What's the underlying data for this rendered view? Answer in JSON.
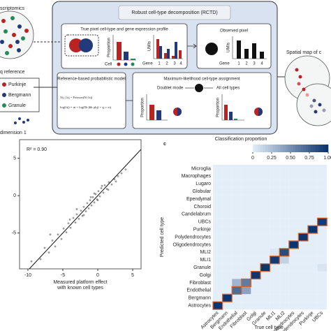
{
  "figure": {
    "left": {
      "title": "scriptomics",
      "reference": "q reference",
      "legend": [
        "Purkinje",
        "Bergmann",
        "Granule"
      ],
      "axis": "dimension 1"
    },
    "rctd": {
      "title": "Robust cell-type decomposition (RCTD)",
      "true_pixel": {
        "title": "True pixel cell-type and gene expression profile",
        "proportion": "Proportion",
        "cell": "Cell",
        "umis": "UMIs",
        "gene": "Gene",
        "genes": [
          "1",
          "2",
          "3",
          "4"
        ]
      },
      "observed": {
        "title": "Observed pixel",
        "umis": "UMIs",
        "gene": "Gene",
        "genes": [
          "1",
          "2",
          "3",
          "4"
        ]
      },
      "model": {
        "title": "Reference-based probabilistic model",
        "equations": [
          "Yij | λij ~ Poisson(Ni λij)",
          "log(λij) = αi + log(Σk βik μkj) + γj + εij"
        ]
      },
      "assignment": {
        "title": "Maximum-likelihood cell-type assignment",
        "doublet": "Doublet mode",
        "all": "All cell types",
        "proportion": "Proportion"
      }
    },
    "spatial": "Spatial map of c"
  },
  "chart_data": [
    {
      "type": "scatter",
      "annotation": "R² = 0.90",
      "x_label": [
        "Measured platform effect",
        "with known cell types"
      ],
      "color": "#222222",
      "x": [
        -9.5,
        -8.2,
        -7.6,
        -7.0,
        -6.5,
        -6.1,
        -5.7,
        -5.2,
        -4.9,
        -4.5,
        -4.2,
        -3.9,
        -3.5,
        -3.2,
        -3.0,
        -2.7,
        -2.4,
        -2.2,
        -2.0,
        -1.7,
        -1.5,
        -1.3,
        -1.1,
        -0.9,
        -0.7,
        -0.5,
        -0.3,
        -0.1,
        0.1,
        0.3,
        0.5,
        0.8,
        1.0,
        1.3,
        1.6,
        2.0,
        2.4,
        2.9,
        3.4,
        4.0,
        -3.0,
        -1.0,
        0.0,
        -2.0,
        1.5,
        -4.0,
        -0.5,
        0.6,
        -6.8,
        2.6
      ],
      "y": [
        -8.8,
        -8.5,
        -7.0,
        -7.6,
        -6.0,
        -6.8,
        -5.2,
        -5.8,
        -4.4,
        -4.9,
        -3.7,
        -4.3,
        -3.0,
        -3.6,
        -2.5,
        -3.1,
        -2.0,
        -2.7,
        -1.5,
        -2.1,
        -1.0,
        -1.7,
        -0.6,
        -1.3,
        -0.2,
        -0.9,
        0.2,
        -0.5,
        0.6,
        -0.1,
        1.0,
        0.4,
        1.4,
        0.9,
        1.8,
        1.5,
        2.2,
        2.6,
        3.0,
        3.5,
        -1.8,
        -0.2,
        -0.6,
        -2.6,
        0.8,
        -3.2,
        0.3,
        1.3,
        -5.2,
        1.9
      ],
      "xlim": [
        -11.2,
        6.2
      ],
      "ylim": [
        -9.8,
        7.5
      ],
      "xticks": [
        -10,
        -5,
        0,
        5
      ],
      "yticks": [
        5,
        0,
        -5
      ],
      "identity_line": true
    },
    {
      "type": "heatmap",
      "panel": "c",
      "colorbar_title": "Classification proportion",
      "colorbar_ticks": [
        0,
        {
          "value": 0.25,
          "label": "0.25"
        },
        {
          "value": 0.5,
          "label": "0.50"
        },
        {
          "value": 0.75,
          "label": "0.75"
        },
        {
          "value": 1,
          "label": "1.00"
        }
      ],
      "clim": [
        0,
        1
      ],
      "y_label": "Predicted cell type",
      "x_label": "True cell type",
      "rows": [
        "Microglia",
        "Macrophages",
        "Lugaro",
        "Globular",
        "Ependymal",
        "Choroid",
        "Candelabrum",
        "UBCs",
        "Purkinje",
        "Polydendrocytes",
        "Oligodendrocytes",
        "MLI2",
        "MLI1",
        "Granule",
        "Golgi",
        "Fibroblast",
        "Endothelial",
        "Bergmann",
        "Astrocytes"
      ],
      "columns": [
        "Astrocytes",
        "Bergmann",
        "Endothelial",
        "Fibroblast",
        "Golgi",
        "Granule",
        "MLI1",
        "MLI2",
        "Oligodendrocytes",
        "Polydendrocytes",
        "Purkinje",
        "UBCs"
      ],
      "values": [
        [
          0,
          0,
          0,
          0,
          0,
          0,
          0,
          0,
          0,
          0,
          0,
          0
        ],
        [
          0,
          0,
          0,
          0,
          0,
          0,
          0,
          0,
          0,
          0,
          0,
          0
        ],
        [
          0,
          0,
          0,
          0,
          0,
          0,
          0,
          0,
          0,
          0,
          0,
          0
        ],
        [
          0,
          0,
          0,
          0,
          0,
          0,
          0,
          0,
          0,
          0,
          0,
          0
        ],
        [
          0,
          0,
          0,
          0,
          0,
          0,
          0,
          0,
          0,
          0,
          0,
          0
        ],
        [
          0,
          0,
          0,
          0,
          0,
          0,
          0,
          0,
          0,
          0,
          0,
          0
        ],
        [
          0,
          0,
          0,
          0,
          0,
          0,
          0,
          0,
          0,
          0,
          0,
          0
        ],
        [
          0,
          0,
          0,
          0,
          0,
          0,
          0,
          0,
          0,
          0,
          0,
          0.95
        ],
        [
          0,
          0,
          0,
          0,
          0,
          0,
          0,
          0,
          0,
          0,
          0.98,
          0
        ],
        [
          0,
          0,
          0,
          0,
          0,
          0,
          0,
          0,
          0,
          0.97,
          0,
          0
        ],
        [
          0,
          0,
          0,
          0,
          0,
          0,
          0,
          0,
          0.98,
          0,
          0,
          0
        ],
        [
          0,
          0,
          0,
          0,
          0,
          0,
          0.04,
          0.85,
          0,
          0,
          0,
          0
        ],
        [
          0,
          0,
          0,
          0,
          0,
          0,
          0.95,
          0.15,
          0,
          0,
          0,
          0
        ],
        [
          0,
          0,
          0,
          0,
          0,
          0.98,
          0,
          0,
          0,
          0,
          0,
          0.05
        ],
        [
          0,
          0,
          0,
          0,
          0.97,
          0,
          0,
          0,
          0,
          0,
          0,
          0
        ],
        [
          0,
          0,
          0.3,
          0.6,
          0,
          0,
          0,
          0,
          0,
          0,
          0,
          0
        ],
        [
          0,
          0,
          0.68,
          0.4,
          0,
          0,
          0,
          0,
          0,
          0,
          0,
          0
        ],
        [
          0,
          0.98,
          0,
          0,
          0,
          0,
          0,
          0,
          0,
          0,
          0,
          0
        ],
        [
          0.98,
          0,
          0,
          0,
          0,
          0,
          0,
          0,
          0,
          0,
          0,
          0
        ]
      ],
      "highlight_color": "#d9632b"
    }
  ]
}
